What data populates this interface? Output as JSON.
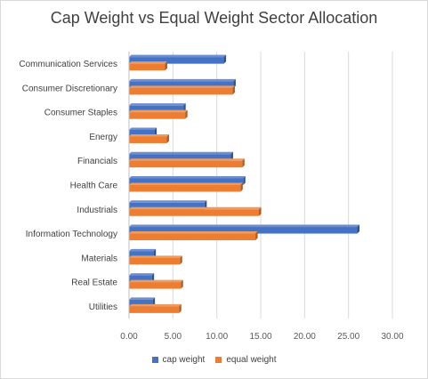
{
  "chart_data": {
    "type": "bar",
    "orientation": "horizontal",
    "title": "Cap Weight vs Equal Weight Sector Allocation",
    "xlabel": "",
    "ylabel": "",
    "xlim": [
      0,
      30
    ],
    "x_ticks": [
      "0.00",
      "5.00",
      "10.00",
      "15.00",
      "20.00",
      "25.00",
      "30.00"
    ],
    "grid": true,
    "legend_position": "bottom",
    "categories": [
      "Communication Services",
      "Consumer Discretionary",
      "Consumer Staples",
      "Energy",
      "Financials",
      "Health Care",
      "Industrials",
      "Information Technology",
      "Materials",
      "Real Estate",
      "Utilities"
    ],
    "series": [
      {
        "name": "cap weight",
        "color": "#4472c4",
        "values": [
          10.8,
          11.9,
          6.2,
          2.9,
          11.6,
          13.0,
          8.6,
          26.0,
          2.8,
          2.6,
          2.7
        ]
      },
      {
        "name": "equal weight",
        "color": "#ed7d31",
        "values": [
          4.1,
          11.8,
          6.4,
          4.3,
          12.9,
          12.7,
          14.8,
          14.4,
          5.8,
          5.9,
          5.7
        ]
      }
    ]
  }
}
